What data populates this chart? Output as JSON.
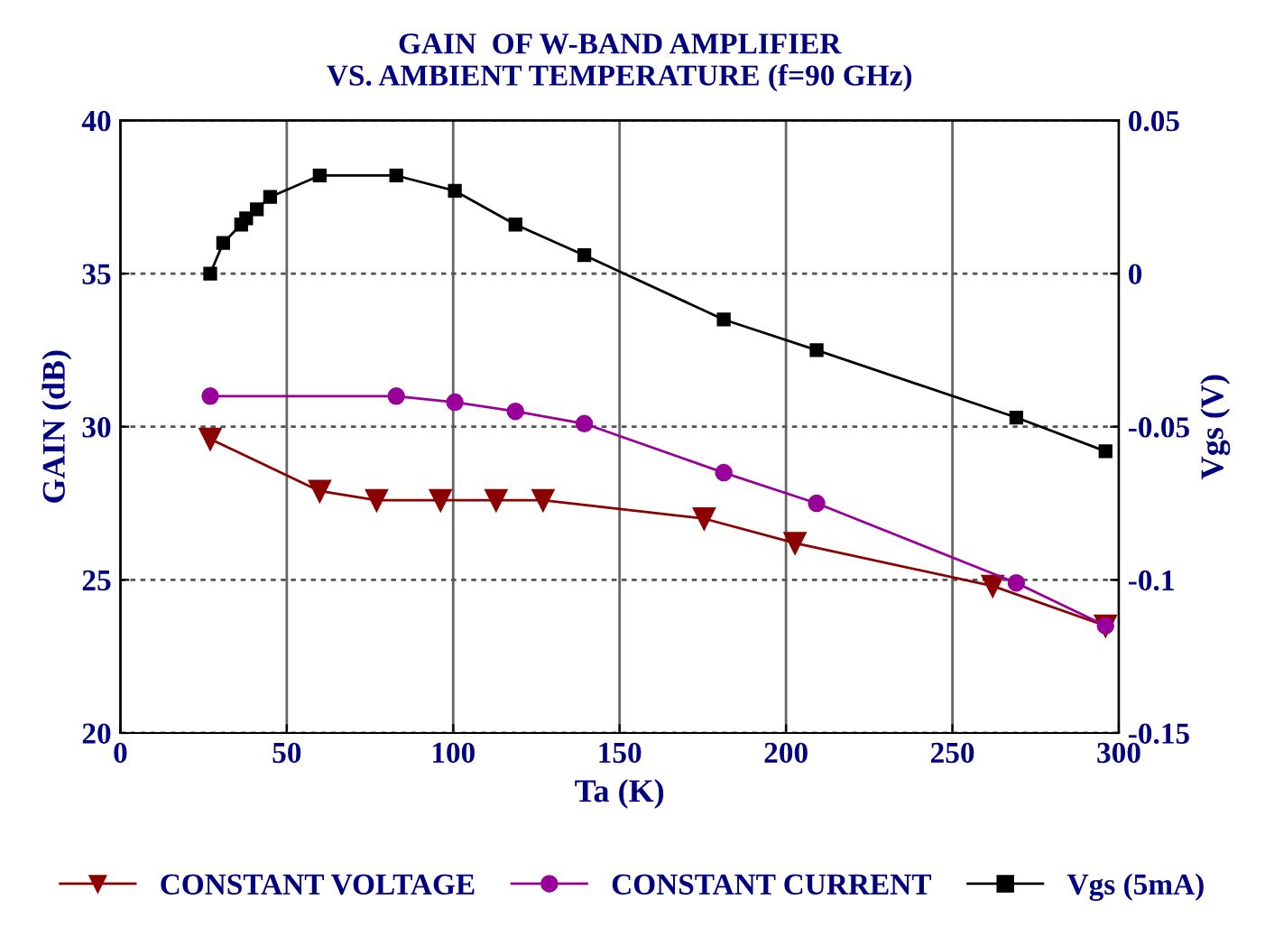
{
  "chart_data": {
    "type": "line",
    "title": "GAIN  OF W-BAND AMPLIFIER\nVS. AMBIENT TEMPERATURE (f=90 GHz)",
    "xlabel": "Ta (K)",
    "ylabel": "GAIN (dB)",
    "y2label": "Vgs (V)",
    "xlim": [
      0,
      300
    ],
    "xticks": [
      0,
      50,
      100,
      150,
      200,
      250,
      300
    ],
    "ylim": [
      20,
      40
    ],
    "yticks": [
      20,
      25,
      30,
      35,
      40
    ],
    "y2lim": [
      -0.15,
      0.05
    ],
    "y2ticks": [
      -0.15,
      -0.1,
      -0.05,
      0,
      0.05
    ],
    "grid": true,
    "legend": "bottom",
    "line_style": "solid",
    "series": [
      {
        "name": "CONSTANT VOLTAGE",
        "color": "#8b0000",
        "marker": "triangle",
        "x": [
          27.0,
          59.9,
          77.0,
          96.2,
          112.9,
          127.0,
          175.4,
          202.7,
          262.1,
          296.0
        ],
        "values": [
          29.6,
          27.9,
          27.6,
          27.6,
          27.6,
          27.6,
          27.0,
          26.2,
          24.8,
          23.5
        ]
      },
      {
        "name": "CONSTANT CURRENT",
        "color": "#990099",
        "marker": "circle",
        "x": [
          27.0,
          82.9,
          100.5,
          118.7,
          139.4,
          181.3,
          209.2,
          269.2,
          296.0
        ],
        "values": [
          31.0,
          31.0,
          30.8,
          30.5,
          30.1,
          28.5,
          27.5,
          24.9,
          23.5
        ]
      },
      {
        "name": "Vgs (5mA)",
        "color": "#000000",
        "marker": "square",
        "axis": "y2",
        "x": [
          27.0,
          30.9,
          36.3,
          37.8,
          41.0,
          45.0,
          59.9,
          82.9,
          100.5,
          118.7,
          139.4,
          181.3,
          209.2,
          269.2,
          296.0
        ],
        "values": [
          0.0,
          0.01,
          0.016,
          0.018,
          0.021,
          0.025,
          0.032,
          0.032,
          0.027,
          0.016,
          0.006,
          -0.015,
          -0.025,
          -0.047,
          -0.058
        ]
      }
    ]
  }
}
